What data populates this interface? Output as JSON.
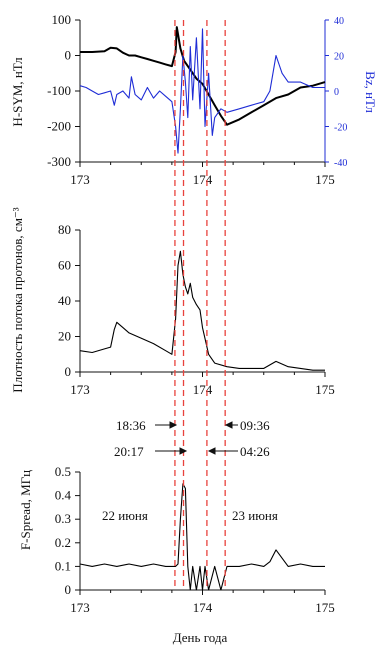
{
  "chart_data": [
    {
      "type": "line",
      "panel": "top",
      "xlim": [
        173,
        175
      ],
      "x_ticks": [
        "173",
        "174",
        "175"
      ],
      "ylim": [
        -300,
        100
      ],
      "y_ticks": [
        "100",
        "0",
        "-100",
        "-200",
        "-300"
      ],
      "ylabel": "H-SYM, нТл",
      "y2lim": [
        -40,
        40
      ],
      "y2_ticks": [
        "40",
        "20",
        "0",
        "-20",
        "-40"
      ],
      "y2label": "Bz, нТл",
      "series": [
        {
          "color": "#000000",
          "axis": "left",
          "x": [
            173.0,
            173.1,
            173.2,
            173.25,
            173.3,
            173.35,
            173.4,
            173.45,
            173.5,
            173.55,
            173.6,
            173.65,
            173.7,
            173.75,
            173.78,
            173.79,
            173.8,
            173.82,
            173.85,
            173.9,
            173.95,
            174.0,
            174.05,
            174.1,
            174.15,
            174.2,
            174.3,
            174.4,
            174.5,
            174.6,
            174.7,
            174.8,
            174.9,
            175.0
          ],
          "y": [
            10,
            10,
            12,
            22,
            20,
            8,
            0,
            0,
            -5,
            -10,
            -15,
            -20,
            -25,
            -30,
            10,
            80,
            60,
            20,
            -15,
            -40,
            -65,
            -80,
            -110,
            -140,
            -170,
            -195,
            -180,
            -160,
            -140,
            -120,
            -110,
            -90,
            -85,
            -75
          ]
        },
        {
          "color": "#1f2dd6",
          "axis": "right",
          "x": [
            173.0,
            173.05,
            173.1,
            173.15,
            173.2,
            173.25,
            173.28,
            173.3,
            173.35,
            173.4,
            173.42,
            173.45,
            173.5,
            173.55,
            173.6,
            173.65,
            173.7,
            173.75,
            173.78,
            173.8,
            173.82,
            173.84,
            173.86,
            173.88,
            173.9,
            173.92,
            173.95,
            173.98,
            174.0,
            174.02,
            174.05,
            174.08,
            174.1,
            174.15,
            174.2,
            174.3,
            174.4,
            174.5,
            174.55,
            174.6,
            174.65,
            174.7,
            174.8,
            174.9,
            175.0
          ],
          "y": [
            3,
            2,
            0,
            -2,
            -1,
            0,
            -8,
            -2,
            0,
            -4,
            8,
            -2,
            -5,
            2,
            -4,
            0,
            -3,
            -6,
            -20,
            -35,
            -10,
            20,
            5,
            -15,
            25,
            -5,
            30,
            -10,
            35,
            -20,
            10,
            -25,
            -15,
            -10,
            -12,
            -10,
            -8,
            -6,
            0,
            20,
            10,
            5,
            5,
            2,
            2
          ]
        }
      ]
    },
    {
      "type": "line",
      "panel": "middle",
      "xlim": [
        173,
        175
      ],
      "x_ticks": [
        "173",
        "174",
        "175"
      ],
      "ylim": [
        0,
        80
      ],
      "y_ticks": [
        "80",
        "60",
        "40",
        "20",
        "0"
      ],
      "ylabel": "Плотность потока протонов, см⁻³",
      "series": [
        {
          "color": "#000000",
          "x": [
            173.0,
            173.1,
            173.2,
            173.25,
            173.28,
            173.3,
            173.35,
            173.4,
            173.5,
            173.6,
            173.7,
            173.75,
            173.78,
            173.8,
            173.82,
            173.84,
            173.86,
            173.88,
            173.9,
            173.92,
            173.95,
            173.98,
            174.0,
            174.05,
            174.1,
            174.2,
            174.3,
            174.5,
            174.6,
            174.7,
            174.8,
            174.9,
            175.0
          ],
          "y": [
            12,
            11,
            13,
            14,
            24,
            28,
            25,
            22,
            19,
            16,
            12,
            10,
            30,
            60,
            68,
            55,
            48,
            44,
            50,
            42,
            38,
            35,
            25,
            10,
            5,
            3,
            2,
            2,
            6,
            3,
            2,
            1,
            1
          ]
        }
      ]
    },
    {
      "type": "line",
      "panel": "bottom",
      "xlim": [
        173,
        175
      ],
      "x_ticks": [
        "173",
        "174",
        "175"
      ],
      "xlabel": "День года",
      "ylim": [
        0,
        0.5
      ],
      "y_ticks": [
        "0.5",
        "0.4",
        "0.3",
        "0.2",
        "0.1",
        "0"
      ],
      "ylabel": "F-Spread, МГц",
      "series": [
        {
          "color": "#000000",
          "x": [
            173.0,
            173.1,
            173.2,
            173.3,
            173.4,
            173.5,
            173.6,
            173.7,
            173.78,
            173.8,
            173.82,
            173.84,
            173.86,
            173.88,
            173.9,
            173.92,
            173.95,
            173.98,
            174.0,
            174.02,
            174.05,
            174.1,
            174.15,
            174.2,
            174.3,
            174.4,
            174.5,
            174.55,
            174.6,
            174.7,
            174.8,
            174.9,
            175.0
          ],
          "y": [
            0.11,
            0.1,
            0.11,
            0.1,
            0.11,
            0.1,
            0.11,
            0.1,
            0.1,
            0.11,
            0.3,
            0.45,
            0.43,
            0.1,
            0.0,
            0.1,
            0.0,
            0.1,
            0.0,
            0.1,
            0.0,
            0.1,
            0.0,
            0.1,
            0.1,
            0.11,
            0.1,
            0.12,
            0.17,
            0.1,
            0.11,
            0.1,
            0.1
          ]
        }
      ]
    }
  ],
  "annotations": {
    "time_1836": "18:36",
    "time_2017": "20:17",
    "time_0936": "09:36",
    "time_0426": "04:26",
    "date_22": "22 июня",
    "date_23": "23 июня"
  },
  "vlines": [
    173.775,
    173.845,
    174.185,
    174.036
  ],
  "colors": {
    "dashed": "#e8423c",
    "blue": "#1f2dd6",
    "black": "#000000"
  }
}
